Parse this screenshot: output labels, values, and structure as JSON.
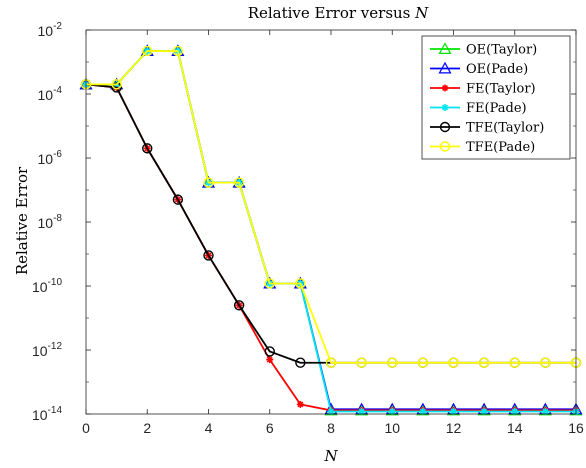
{
  "chart_data": {
    "type": "line",
    "title": "Relative Error versus",
    "title_var": "N",
    "xlabel": "N",
    "ylabel": "Relative Error",
    "xlim": [
      0,
      16
    ],
    "ylim": [
      1e-14,
      0.01
    ],
    "yscale": "log",
    "xticks": [
      "0",
      "2",
      "4",
      "6",
      "8",
      "10",
      "12",
      "14",
      "16"
    ],
    "yticks": [
      {
        "base": "10",
        "exp": "-14"
      },
      {
        "base": "10",
        "exp": "-12"
      },
      {
        "base": "10",
        "exp": "-10"
      },
      {
        "base": "10",
        "exp": "-8"
      },
      {
        "base": "10",
        "exp": "-6"
      },
      {
        "base": "10",
        "exp": "-4"
      },
      {
        "base": "10",
        "exp": "-2"
      }
    ],
    "legend_position": "top-right",
    "x": [
      0,
      1,
      2,
      3,
      4,
      5,
      6,
      7,
      8,
      9,
      10,
      11,
      12,
      13,
      14,
      15,
      16
    ],
    "series": [
      {
        "name": "OE(Taylor)",
        "color": "#00e600",
        "marker": "triangle",
        "values": [
          0.0002,
          0.0002,
          0.0022,
          0.0022,
          1.7e-07,
          1.7e-07,
          1.2e-10,
          1.2e-10,
          1.3e-14,
          1.3e-14,
          1.3e-14,
          1.3e-14,
          1.3e-14,
          1.3e-14,
          1.3e-14,
          1.3e-14,
          1.3e-14
        ]
      },
      {
        "name": "OE(Pade)",
        "color": "#0000ff",
        "marker": "triangle",
        "values": [
          0.0002,
          0.0002,
          0.0022,
          0.0022,
          1.7e-07,
          1.7e-07,
          1.2e-10,
          1.2e-10,
          1.4e-14,
          1.4e-14,
          1.4e-14,
          1.4e-14,
          1.4e-14,
          1.4e-14,
          1.4e-14,
          1.4e-14,
          1.4e-14
        ]
      },
      {
        "name": "FE(Taylor)",
        "color": "#ff0000",
        "marker": "star",
        "values": [
          0.0002,
          0.00016,
          2e-06,
          5e-08,
          9e-10,
          2.5e-11,
          5e-13,
          2e-14,
          1.3e-14,
          1.3e-14,
          1.3e-14,
          1.3e-14,
          1.3e-14,
          1.3e-14,
          1.3e-14,
          1.3e-14,
          1.3e-14
        ]
      },
      {
        "name": "FE(Pade)",
        "color": "#00e5ee",
        "marker": "star",
        "values": [
          0.0002,
          0.0002,
          0.0022,
          0.0022,
          1.7e-07,
          1.7e-07,
          1.2e-10,
          1.2e-10,
          1.2e-14,
          1.2e-14,
          1.2e-14,
          1.2e-14,
          1.2e-14,
          1.2e-14,
          1.2e-14,
          1.2e-14,
          1.2e-14
        ]
      },
      {
        "name": "TFE(Taylor)",
        "color": "#000000",
        "marker": "circle",
        "values": [
          0.0002,
          0.00016,
          2e-06,
          5e-08,
          9e-10,
          2.5e-11,
          9e-13,
          4e-13,
          4e-13,
          4e-13,
          4e-13,
          4e-13,
          4e-13,
          4e-13,
          4e-13,
          4e-13,
          4e-13
        ]
      },
      {
        "name": "TFE(Pade)",
        "color": "#ffff00",
        "marker": "circle",
        "values": [
          0.0002,
          0.0002,
          0.0022,
          0.0022,
          1.7e-07,
          1.7e-07,
          1.2e-10,
          1.2e-10,
          4e-13,
          4e-13,
          4e-13,
          4e-13,
          4e-13,
          4e-13,
          4e-13,
          4e-13,
          4e-13
        ]
      }
    ]
  }
}
